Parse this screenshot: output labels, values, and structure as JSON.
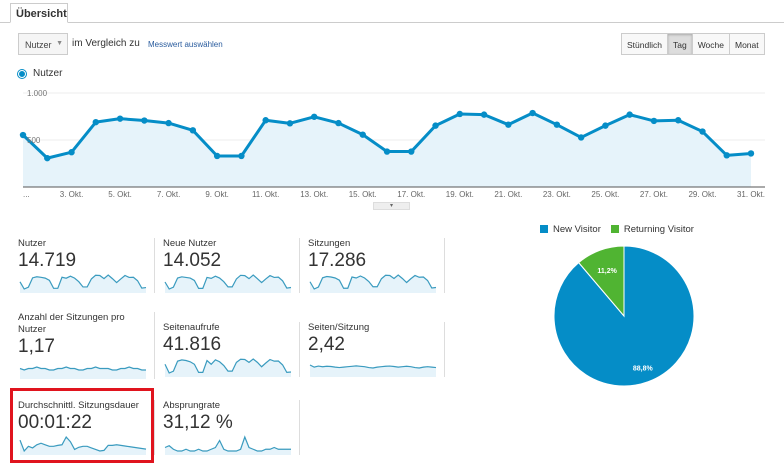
{
  "tabs": [
    {
      "label": "Übersicht"
    }
  ],
  "toolbar": {
    "metric_select": "Nutzer",
    "compare_text": "im Vergleich zu",
    "pick_metric_link": "Messwert auswählen",
    "granularity": [
      {
        "label": "Stündlich",
        "active": false
      },
      {
        "label": "Tag",
        "active": true
      },
      {
        "label": "Woche",
        "active": false
      },
      {
        "label": "Monat",
        "active": false
      }
    ]
  },
  "chart_data": {
    "type": "area",
    "series": [
      {
        "name": "Nutzer",
        "color": "#058dc7",
        "values": [
          553,
          307,
          370,
          690,
          727,
          707,
          680,
          603,
          330,
          330,
          710,
          677,
          747,
          680,
          557,
          377,
          377,
          653,
          777,
          770,
          663,
          787,
          663,
          527,
          653,
          770,
          703,
          710,
          590,
          337,
          357
        ]
      }
    ],
    "x": [
      "1. Okt.",
      "2. Okt.",
      "3. Okt.",
      "4. Okt.",
      "5. Okt.",
      "6. Okt.",
      "7. Okt.",
      "8. Okt.",
      "9. Okt.",
      "10. Okt.",
      "11. Okt.",
      "12. Okt.",
      "13. Okt.",
      "14. Okt.",
      "15. Okt.",
      "16. Okt.",
      "17. Okt.",
      "18. Okt.",
      "19. Okt.",
      "20. Okt.",
      "21. Okt.",
      "22. Okt.",
      "23. Okt.",
      "24. Okt.",
      "25. Okt.",
      "26. Okt.",
      "27. Okt.",
      "28. Okt.",
      "29. Okt.",
      "30. Okt.",
      "31. Okt."
    ],
    "xtick_labels": [
      "...",
      "3. Okt.",
      "5. Okt.",
      "7. Okt.",
      "9. Okt.",
      "11. Okt.",
      "13. Okt.",
      "15. Okt.",
      "17. Okt.",
      "19. Okt.",
      "21. Okt.",
      "23. Okt.",
      "25. Okt.",
      "27. Okt.",
      "29. Okt.",
      "31. Okt."
    ],
    "ytick_labels": [
      "1.000",
      "500"
    ],
    "ylim": [
      0,
      1000
    ],
    "grid": true,
    "legend": "top-left"
  },
  "metrics": [
    {
      "label": "Nutzer",
      "value": "14.719",
      "spark": [
        553,
        307,
        370,
        690,
        727,
        707,
        680,
        603,
        330,
        330,
        710,
        677,
        747,
        680,
        557,
        377,
        377,
        653,
        777,
        770,
        663,
        787,
        663,
        527,
        653,
        770,
        703,
        710,
        590,
        337,
        357
      ]
    },
    {
      "label": "Neue Nutzer",
      "value": "14.052",
      "spark": [
        520,
        290,
        350,
        650,
        690,
        670,
        650,
        570,
        310,
        310,
        670,
        640,
        710,
        650,
        530,
        360,
        360,
        620,
        740,
        730,
        630,
        750,
        630,
        500,
        620,
        730,
        670,
        680,
        560,
        320,
        340
      ]
    },
    {
      "label": "Sitzungen",
      "value": "17.286",
      "spark": [
        640,
        350,
        430,
        800,
        850,
        830,
        790,
        700,
        380,
        380,
        830,
        790,
        870,
        790,
        650,
        440,
        440,
        760,
        900,
        890,
        770,
        910,
        770,
        610,
        760,
        890,
        820,
        830,
        690,
        390,
        410
      ]
    },
    {
      "label": "Anzahl der Sitzungen pro Nutzer",
      "value": "1,17",
      "spark": [
        1.17,
        1.16,
        1.17,
        1.17,
        1.18,
        1.17,
        1.17,
        1.16,
        1.16,
        1.17,
        1.17,
        1.18,
        1.17,
        1.17,
        1.16,
        1.16,
        1.17,
        1.17,
        1.18,
        1.17,
        1.17,
        1.17,
        1.16,
        1.16,
        1.17,
        1.17,
        1.18,
        1.17,
        1.17,
        1.16,
        1.16
      ]
    },
    {
      "label": "Seitenaufrufe",
      "value": "41.816",
      "spark": [
        1500,
        800,
        950,
        1750,
        1850,
        1800,
        1700,
        1500,
        850,
        850,
        1800,
        1500,
        1850,
        1700,
        1400,
        950,
        950,
        1650,
        1900,
        1880,
        1650,
        1920,
        1650,
        1300,
        1600,
        1880,
        1750,
        1760,
        1450,
        850,
        880
      ]
    },
    {
      "label": "Seiten/Sitzung",
      "value": "2,42",
      "spark": [
        2.5,
        2.4,
        2.45,
        2.42,
        2.44,
        2.43,
        2.4,
        2.38,
        2.4,
        2.42,
        2.44,
        2.46,
        2.44,
        2.42,
        2.38,
        2.36,
        2.4,
        2.42,
        2.44,
        2.45,
        2.43,
        2.4,
        2.42,
        2.44,
        2.42,
        2.38,
        2.36,
        2.4,
        2.42,
        2.4,
        2.38
      ]
    },
    {
      "label": "Durchschnittl. Sitzungsdauer",
      "value": "00:01:22",
      "highlighted": true,
      "spark": [
        95,
        60,
        75,
        70,
        80,
        85,
        80,
        75,
        75,
        78,
        80,
        105,
        90,
        65,
        72,
        75,
        75,
        70,
        65,
        60,
        62,
        78,
        78,
        80,
        78,
        76,
        74,
        72,
        70,
        68,
        66
      ]
    },
    {
      "label": "Absprungrate",
      "value": "31,12 %",
      "spark": [
        32,
        33,
        31,
        30,
        30,
        31,
        30,
        30,
        31,
        30,
        30,
        31,
        32,
        36,
        31,
        30,
        30,
        30,
        31,
        38,
        32,
        31,
        30,
        30,
        31,
        31,
        32,
        31,
        31,
        31,
        31
      ]
    }
  ],
  "pie": {
    "legend": [
      {
        "label": "New Visitor",
        "color": "#058dc7"
      },
      {
        "label": "Returning Visitor",
        "color": "#50b432"
      }
    ],
    "slices": [
      {
        "label": "New Visitor",
        "value": 88.8,
        "text": "88,8%",
        "color": "#058dc7"
      },
      {
        "label": "Returning Visitor",
        "value": 11.2,
        "text": "11,2%",
        "color": "#50b432"
      }
    ]
  }
}
